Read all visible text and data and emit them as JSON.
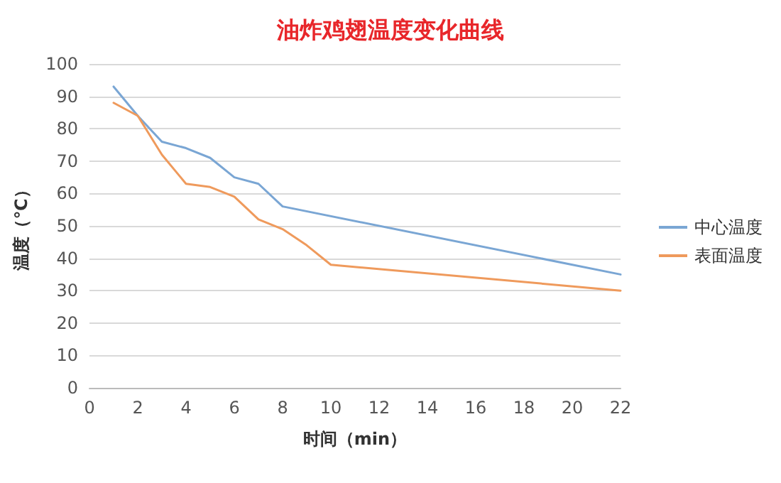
{
  "chart_data": {
    "type": "line",
    "title": "油炸鸡翅温度变化曲线",
    "xlabel": "时间（min）",
    "ylabel": "温度（℃）",
    "xlim": [
      0,
      22
    ],
    "xticks": [
      0,
      2,
      4,
      6,
      8,
      10,
      12,
      14,
      16,
      18,
      20,
      22
    ],
    "ylim": [
      0,
      100
    ],
    "yticks": [
      0,
      10,
      20,
      30,
      40,
      50,
      60,
      70,
      80,
      90,
      100
    ],
    "grid": "y",
    "legend": "right",
    "marker": "none",
    "series": [
      {
        "name": "中心温度",
        "color": "#7aa6d4",
        "x": [
          1,
          2,
          3,
          4,
          5,
          6,
          7,
          8,
          22
        ],
        "values": [
          93,
          84,
          76,
          74,
          71,
          65,
          63,
          56,
          35
        ]
      },
      {
        "name": "表面温度",
        "color": "#ef9a5c",
        "x": [
          1,
          2,
          3,
          4,
          5,
          6,
          7,
          8,
          9,
          10,
          22
        ],
        "values": [
          88,
          84,
          72,
          63,
          62,
          59,
          52,
          49,
          44,
          38,
          30
        ]
      }
    ]
  }
}
